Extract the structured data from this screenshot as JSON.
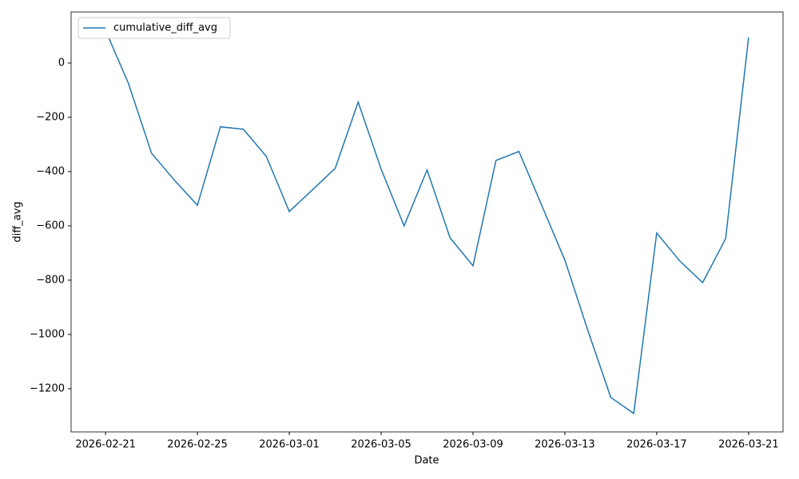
{
  "chart_data": {
    "type": "line",
    "x_label": "Date",
    "y_label": "diff_avg",
    "x": [
      "2026-02-21",
      "2026-02-22",
      "2026-02-23",
      "2026-02-24",
      "2026-02-25",
      "2026-02-26",
      "2026-02-27",
      "2026-02-28",
      "2026-03-01",
      "2026-03-02",
      "2026-03-03",
      "2026-03-04",
      "2026-03-05",
      "2026-03-06",
      "2026-03-07",
      "2026-03-08",
      "2026-03-09",
      "2026-03-10",
      "2026-03-11",
      "2026-03-12",
      "2026-03-13",
      "2026-03-14",
      "2026-03-15",
      "2026-03-16",
      "2026-03-17",
      "2026-03-18",
      "2026-03-19",
      "2026-03-20",
      "2026-03-21"
    ],
    "series": [
      {
        "name": "cumulative_diff_avg",
        "color": "#1f77b4",
        "values": [
          120,
          -76,
          -332,
          -432,
          -524,
          -235,
          -244,
          -344,
          -547,
          -468,
          -388,
          -144,
          -391,
          -600,
          -394,
          -644,
          -747,
          -359,
          -326,
          -526,
          -726,
          -985,
          -1232,
          -1291,
          -626,
          -729,
          -809,
          -647,
          94
        ]
      }
    ],
    "xlim": [
      "2026-02-19T12:00:00Z",
      "2026-03-22T12:00:00Z"
    ],
    "xticks": [
      "2026-02-21",
      "2026-02-25",
      "2026-03-01",
      "2026-03-05",
      "2026-03-09",
      "2026-03-13",
      "2026-03-17",
      "2026-03-21"
    ],
    "ylim": [
      -1359,
      188
    ],
    "yticks": [
      0,
      {
        "value": -200,
        "label": "−200"
      },
      {
        "value": -400,
        "label": "−400"
      },
      {
        "value": -600,
        "label": "−600"
      },
      {
        "value": -800,
        "label": "−800"
      },
      {
        "value": -1000,
        "label": "−1000"
      },
      {
        "value": -1200,
        "label": "−1200"
      }
    ],
    "grid": false,
    "legend": "upper left"
  }
}
